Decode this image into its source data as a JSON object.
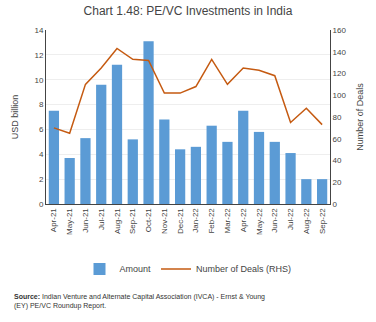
{
  "chart_data": {
    "type": "bar",
    "title": "Chart 1.48: PE/VC Investments in India",
    "categories": [
      "Apr-21",
      "May-21",
      "Jun-21",
      "Jul-21",
      "Aug-21",
      "Sep-21",
      "Oct-21",
      "Nov-21",
      "Dec-21",
      "Jan-22",
      "Feb-22",
      "Mar-22",
      "Apr-22",
      "May-22",
      "Jun-22",
      "Jul-22",
      "Aug-22",
      "Sep-22"
    ],
    "series": [
      {
        "name": "Amount",
        "type": "bar",
        "color": "#5B9BD5",
        "values": [
          7.5,
          3.7,
          5.3,
          9.6,
          11.2,
          5.2,
          13.1,
          6.8,
          4.4,
          4.6,
          6.3,
          5.0,
          7.5,
          5.8,
          5.0,
          4.1,
          2.0,
          2.0
        ]
      },
      {
        "name": "Number of Deals (RHS)",
        "type": "line",
        "color": "#C55A11",
        "axis": "y2",
        "values": [
          70,
          65,
          110,
          125,
          143,
          133,
          132,
          102,
          102,
          108,
          133,
          110,
          125,
          123,
          118,
          75,
          88,
          73
        ]
      }
    ],
    "ylabel": "USD billion",
    "y2label": "Number of Deals",
    "ylim": [
      0,
      14
    ],
    "yticks": [
      0,
      2,
      4,
      6,
      8,
      10,
      12,
      14
    ],
    "y2lim": [
      0,
      160
    ],
    "y2ticks": [
      0,
      20,
      40,
      60,
      80,
      100,
      120,
      140,
      160
    ],
    "grid": true,
    "legend": "bottom",
    "annotations": [
      "Source: Indian Venture and Alternate Capital Association (IVCA) - Ernst & Young\n(EY) PE/VC Roundup Report."
    ]
  }
}
